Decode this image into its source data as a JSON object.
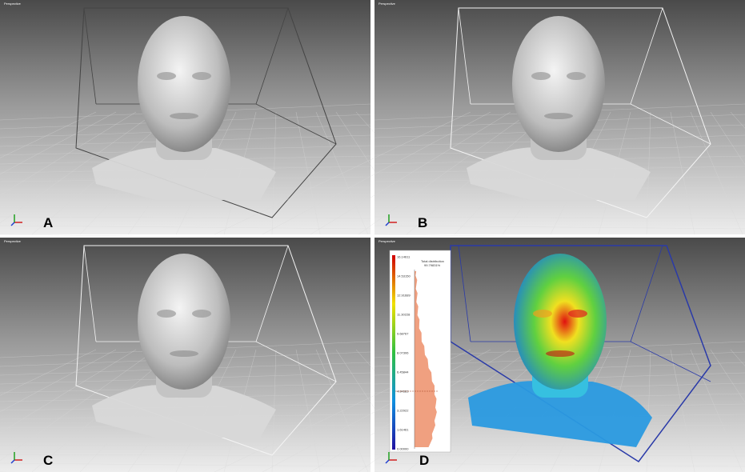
{
  "panels": [
    {
      "view": "Perspective",
      "label": "A"
    },
    {
      "view": "Perspective",
      "label": "B"
    },
    {
      "view": "Perspective",
      "label": "C"
    },
    {
      "view": "Perspective",
      "label": "D"
    }
  ],
  "colorbar": {
    "ticks": [
      "16.14611",
      "14.53150",
      "12.91689",
      "11.30228",
      "9.68767",
      "8.07306",
      "6.45844",
      "4.84383",
      "3.22922",
      "1.61461",
      "0.00000"
    ],
    "caption": "Total distribution",
    "total": "99.79831%"
  }
}
